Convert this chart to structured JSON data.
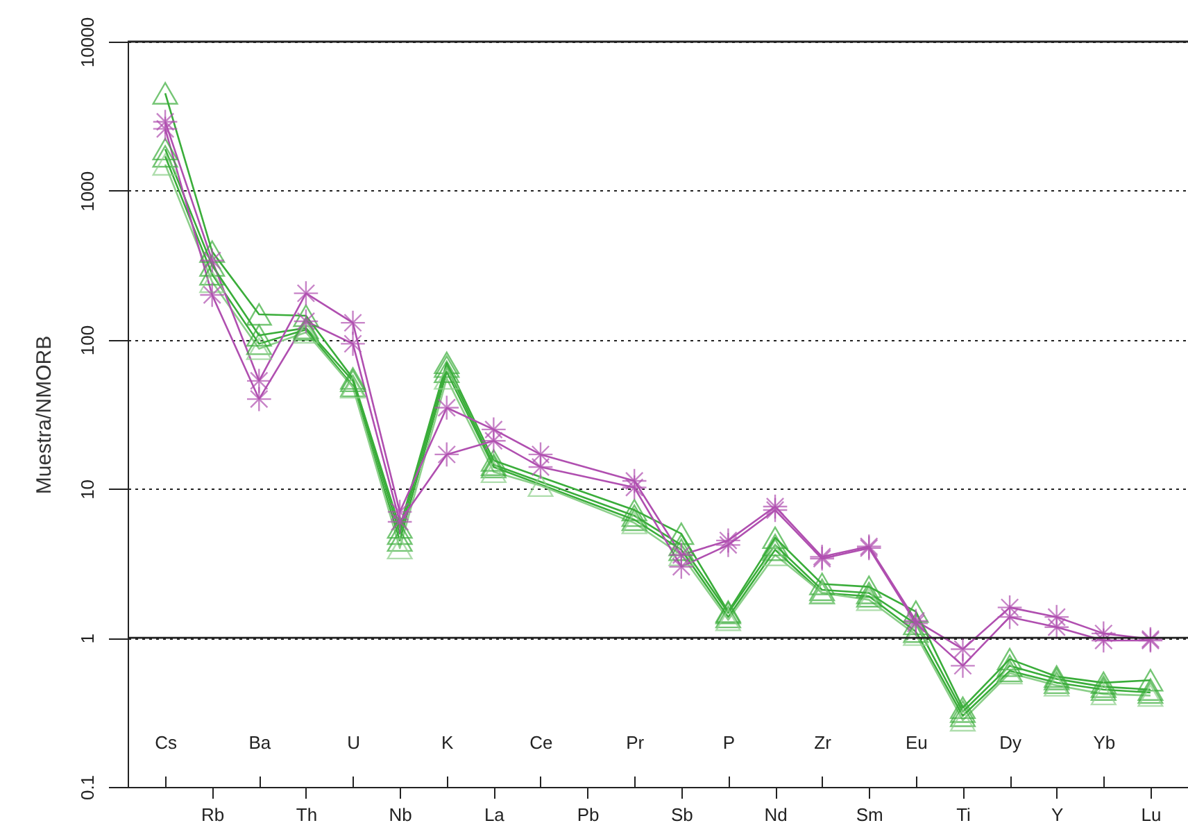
{
  "chart_data": {
    "type": "line",
    "ylabel": "Muestra/NMORB",
    "log": "y",
    "ylim": [
      0.1,
      10000
    ],
    "yticks": [
      0.1,
      1,
      10,
      100,
      1000,
      10000
    ],
    "grid": "y",
    "categories": [
      "Cs",
      "Rb",
      "Ba",
      "Th",
      "U",
      "Nb",
      "K",
      "La",
      "Ce",
      "Pb",
      "Pr",
      "Sb",
      "P",
      "Nd",
      "Zr",
      "Sm",
      "Eu",
      "Ti",
      "Dy",
      "Y",
      "Yb",
      "Lu"
    ],
    "ref_lines": [
      {
        "axis": "y",
        "value": 1,
        "line_style": "solid"
      },
      {
        "axis": "y",
        "value": 10000,
        "line_style": "solid"
      }
    ],
    "series": [
      {
        "color": "#3aad3a",
        "marker": "triangle",
        "x": [
          "Cs",
          "Rb",
          "Ba",
          "Th",
          "U",
          "Nb",
          "K",
          "La",
          "Pr",
          "Sb",
          "P",
          "Nd",
          "Zr",
          "Sm",
          "Eu",
          "Ti",
          "Dy",
          "Y",
          "Yb",
          "Lu"
        ],
        "values": [
          4500,
          390,
          148,
          145,
          55,
          5.5,
          70,
          15.5,
          7.2,
          5,
          1.5,
          4.7,
          2.3,
          2.2,
          1.5,
          0.34,
          0.72,
          0.55,
          0.5,
          0.52
        ]
      },
      {
        "color": "#3aad3a",
        "marker": "triangle",
        "x": [
          "Cs",
          "Rb",
          "Ba",
          "Th",
          "U",
          "Nb",
          "K",
          "La",
          "Pr",
          "Sb",
          "P",
          "Nd",
          "Zr",
          "Sm",
          "Eu",
          "Ti",
          "Dy",
          "Y",
          "Yb",
          "Lu"
        ],
        "values": [
          1900,
          315,
          107,
          120,
          53,
          5,
          66,
          14.5,
          6.6,
          4.2,
          1.47,
          4.2,
          2.1,
          2,
          1.24,
          0.32,
          0.65,
          0.53,
          0.47,
          0.45
        ]
      },
      {
        "color": "#3aad3a",
        "marker": "triangle",
        "x": [
          "Cs",
          "Rb",
          "Ba",
          "Th",
          "U",
          "Nb",
          "K",
          "La",
          "Pr",
          "Sb",
          "P",
          "Nd",
          "Zr",
          "Sm",
          "Eu",
          "Ti",
          "Dy",
          "Y",
          "Yb",
          "Lu"
        ],
        "values": [
          1700,
          275,
          94,
          117,
          49,
          4.5,
          61,
          14,
          6.2,
          3.9,
          1.38,
          3.9,
          2,
          1.9,
          1.1,
          0.3,
          0.6,
          0.5,
          0.45,
          0.43
        ]
      },
      {
        "color": "#8ccf8a",
        "marker": "triangle",
        "x": [
          "Cs",
          "Rb",
          "Ba",
          "Th",
          "U",
          "Nb",
          "K",
          "La",
          "Ce",
          "Pr",
          "Sb",
          "P",
          "Nd",
          "Zr",
          "Sm",
          "Eu",
          "Ti",
          "Dy",
          "Y",
          "Yb",
          "Lu"
        ],
        "values": [
          1500,
          245,
          87,
          112,
          48,
          4,
          55,
          13,
          10.5,
          5.9,
          3.6,
          1.32,
          3.6,
          2,
          1.8,
          1.05,
          0.28,
          0.58,
          0.48,
          0.42,
          0.41
        ]
      },
      {
        "color": "#b04fb0",
        "marker": "cross",
        "x": [
          "Cs",
          "Rb",
          "Ba",
          "Th",
          "U",
          "Nb",
          "K",
          "La",
          "Ce",
          "Pr",
          "Sb",
          "P",
          "Nd",
          "Zr",
          "Sm",
          "Eu",
          "Ti",
          "Dy",
          "Y",
          "Yb",
          "Lu"
        ],
        "values": [
          2900,
          340,
          53,
          205,
          130,
          7,
          35,
          25,
          17,
          11.3,
          3.6,
          4.5,
          7.6,
          3.5,
          4.1,
          1.3,
          0.84,
          1.6,
          1.38,
          1.07,
          0.98
        ]
      },
      {
        "color": "#b04fb0",
        "marker": "cross",
        "x": [
          "Cs",
          "Rb",
          "Ba",
          "Th",
          "U",
          "Nb",
          "K",
          "La",
          "Ce",
          "Pr",
          "Sb",
          "P",
          "Nd",
          "Zr",
          "Sm",
          "Eu",
          "Ti",
          "Dy",
          "Y",
          "Yb",
          "Lu"
        ],
        "values": [
          2600,
          200,
          40,
          133,
          94,
          6,
          17,
          21,
          14,
          10.2,
          3,
          4.2,
          7.2,
          3.4,
          4,
          1.25,
          0.65,
          1.38,
          1.18,
          0.96,
          0.96
        ]
      }
    ]
  }
}
